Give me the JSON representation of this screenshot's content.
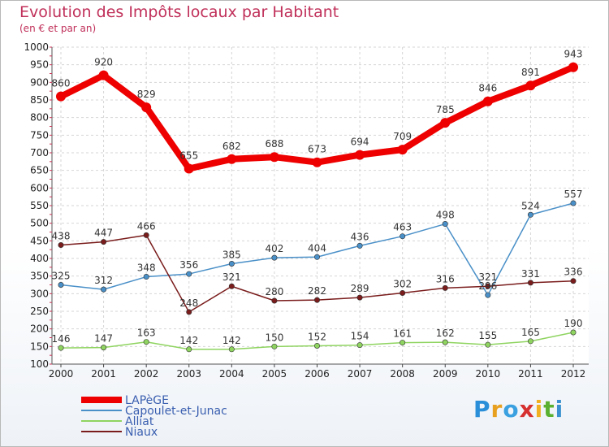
{
  "chart_data": {
    "type": "line",
    "title": "Evolution des Impôts locaux par Habitant",
    "subtitle": "(en € et par an)",
    "x": [
      "2000",
      "2001",
      "2002",
      "2003",
      "2004",
      "2005",
      "2006",
      "2007",
      "2008",
      "2009",
      "2010",
      "2011",
      "2012"
    ],
    "yticks": [
      "100",
      "150",
      "200",
      "250",
      "300",
      "350",
      "400",
      "450",
      "500",
      "550",
      "600",
      "650",
      "700",
      "750",
      "800",
      "850",
      "900",
      "950",
      "1000"
    ],
    "ylim": [
      100,
      1000
    ],
    "grid": true,
    "legend_position": "bottom-left",
    "series": [
      {
        "name": "LAPèGE",
        "color": "#ee0000",
        "values": [
          860,
          920,
          829,
          655,
          682,
          688,
          673,
          694,
          709,
          785,
          846,
          891,
          943
        ],
        "labels": [
          "860",
          "920",
          "829",
          "655",
          "682",
          "688",
          "673",
          "694",
          "709",
          "785",
          "846",
          "891",
          "943"
        ]
      },
      {
        "name": "Capoulet-et-Junac",
        "color": "#4a90c8",
        "values": [
          325,
          312,
          348,
          356,
          385,
          402,
          404,
          436,
          463,
          498,
          296,
          524,
          557
        ],
        "labels": [
          "325",
          "312",
          "348",
          "356",
          "385",
          "402",
          "404",
          "436",
          "463",
          "498",
          "296",
          "524",
          "557"
        ]
      },
      {
        "name": "Alliat",
        "color": "#8fd460",
        "values": [
          146,
          147,
          163,
          142,
          142,
          150,
          152,
          154,
          161,
          162,
          155,
          165,
          190
        ],
        "labels": [
          "146",
          "147",
          "163",
          "142",
          "142",
          "150",
          "152",
          "154",
          "161",
          "162",
          "155",
          "165",
          "190"
        ]
      },
      {
        "name": "Niaux",
        "color": "#7a1c1c",
        "values": [
          438,
          447,
          466,
          248,
          321,
          280,
          282,
          289,
          302,
          316,
          321,
          331,
          336
        ],
        "labels": [
          "438",
          "447",
          "466",
          "248",
          "321",
          "280",
          "282",
          "289",
          "302",
          "316",
          "321",
          "331",
          "336"
        ]
      }
    ]
  },
  "logo": {
    "letters": [
      "P",
      "r",
      "o",
      "x",
      "i",
      "t",
      "i"
    ],
    "colors": [
      "#2a8fd8",
      "#e8a020",
      "#3aa0e0",
      "#d63030",
      "#f0b020",
      "#5ab030",
      "#3a90d0"
    ]
  }
}
